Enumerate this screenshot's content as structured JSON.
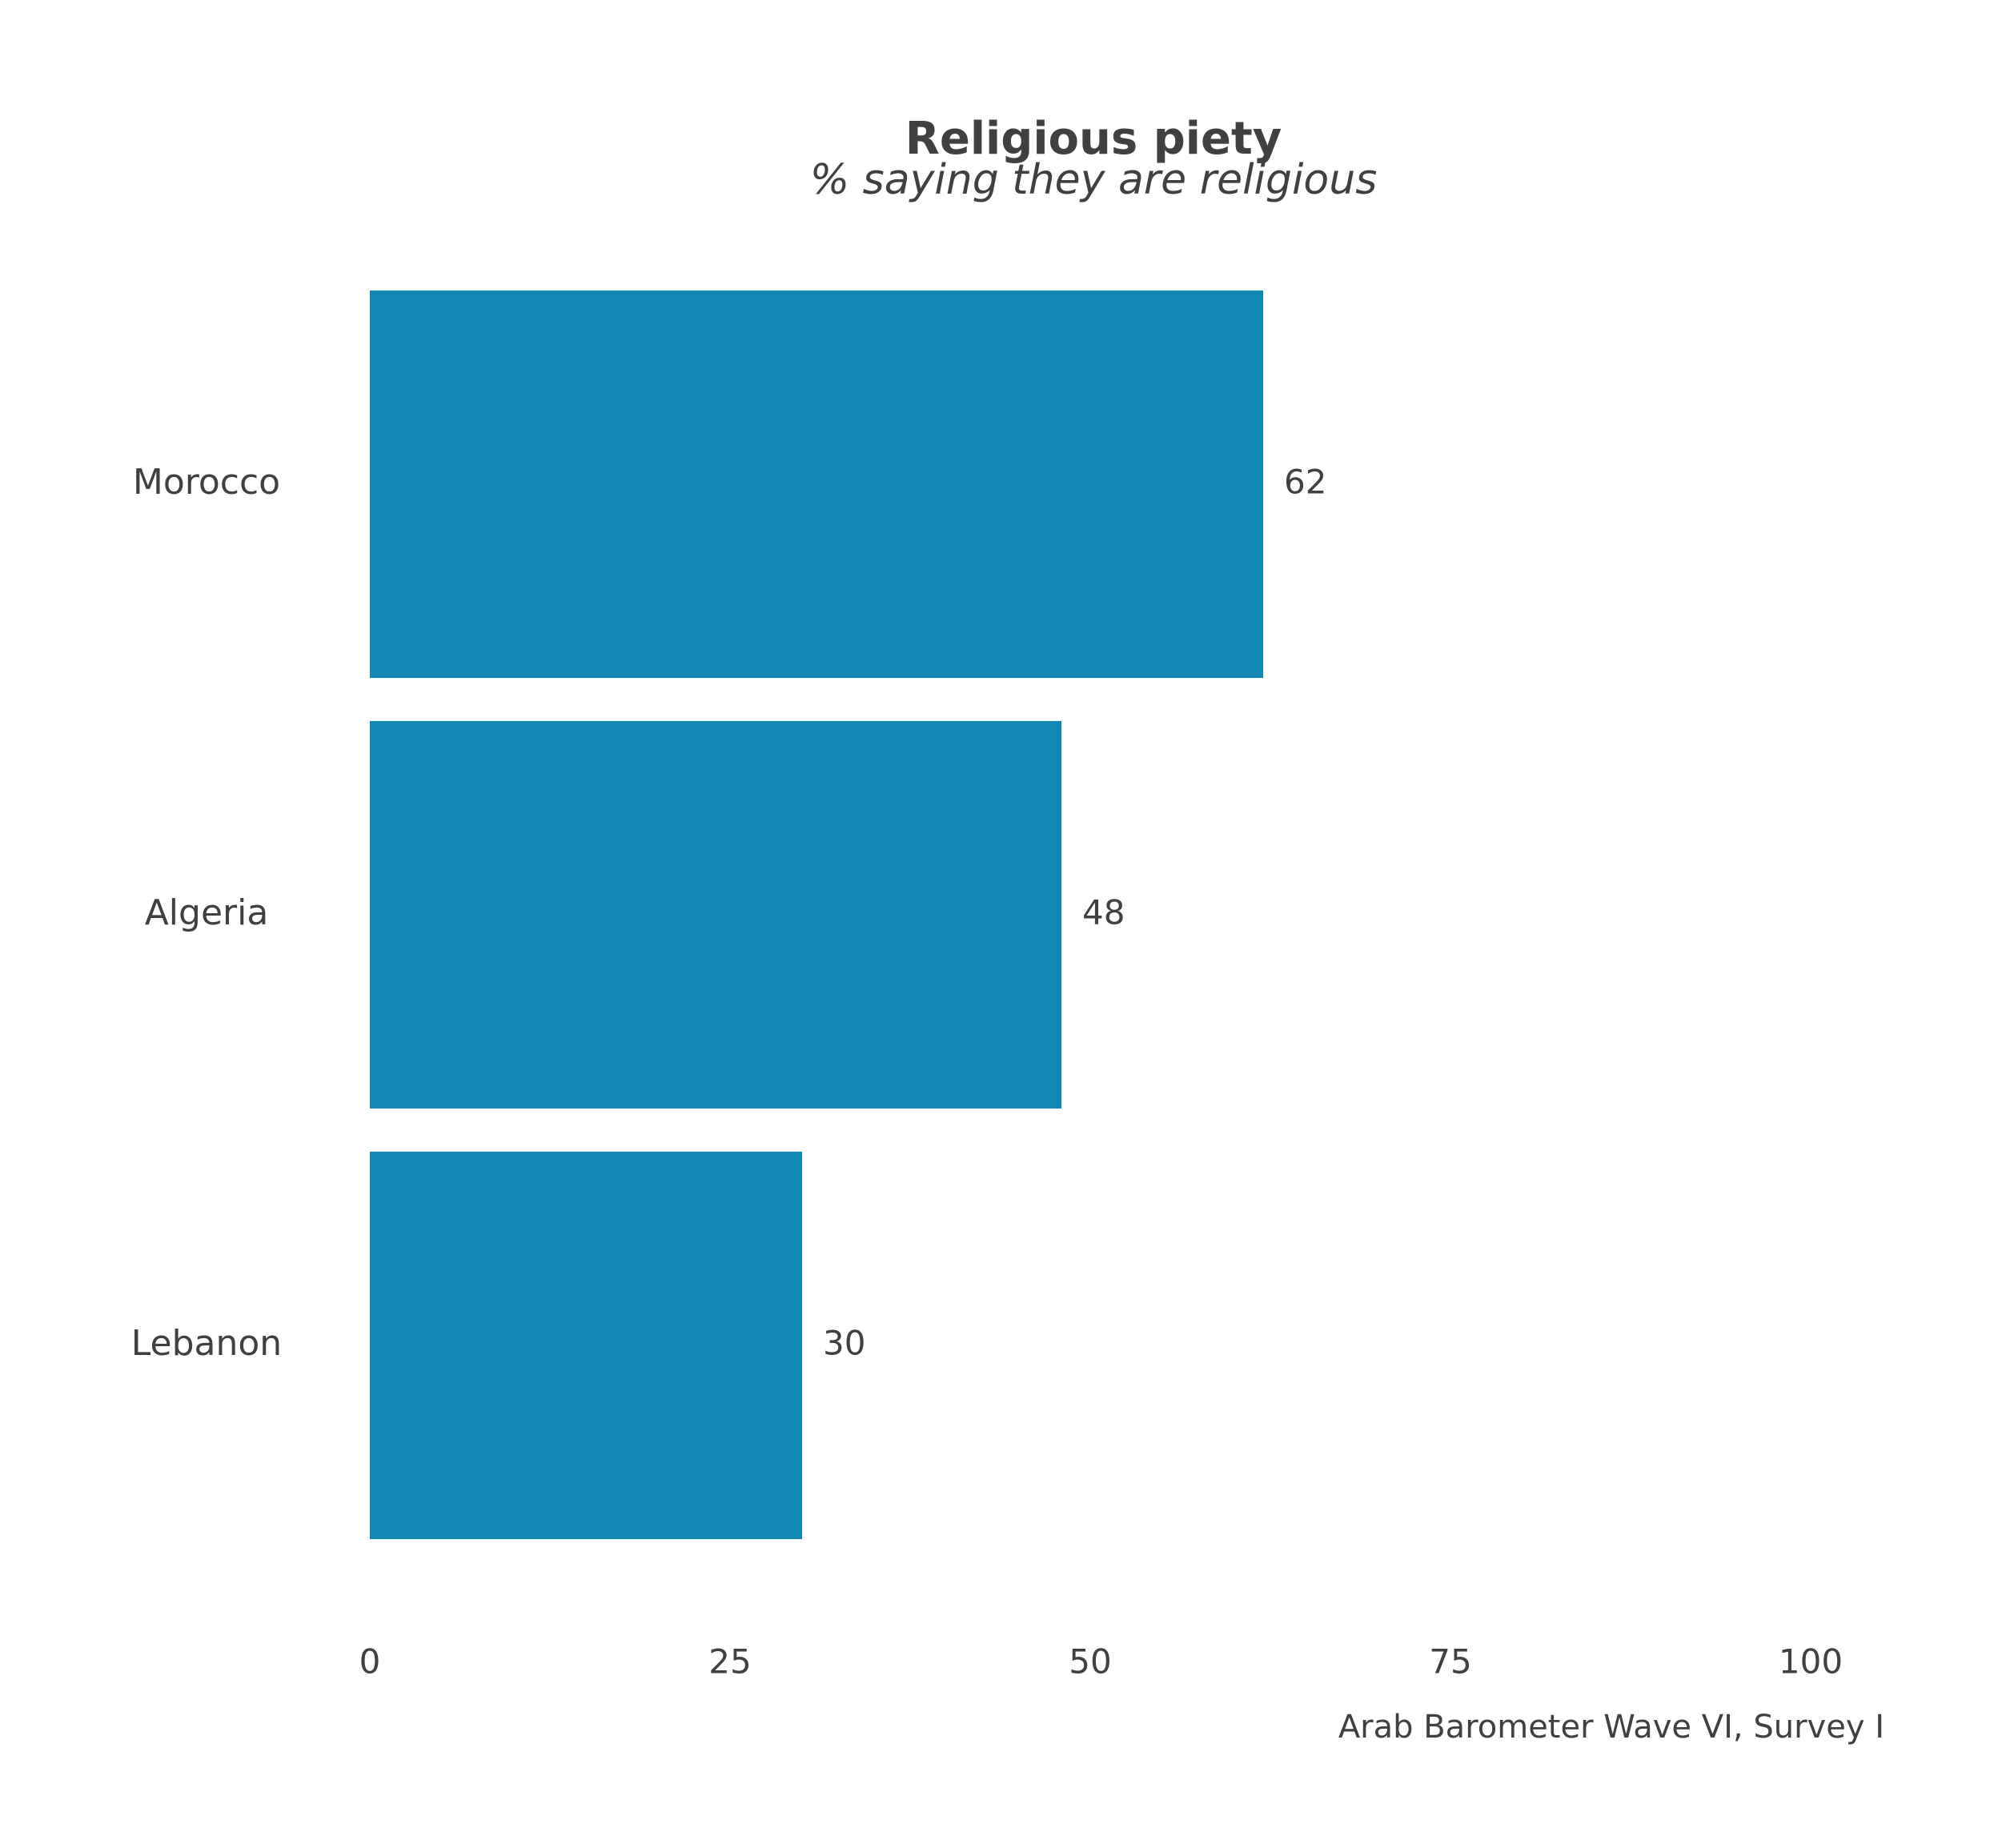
{
  "chart_data": {
    "type": "bar",
    "orientation": "horizontal",
    "title": "Religious piety",
    "subtitle": "% saying they are religious",
    "caption": "Arab Barometer Wave VI, Survey I",
    "categories": [
      "Morocco",
      "Algeria",
      "Lebanon"
    ],
    "values": [
      62,
      48,
      30
    ],
    "value_labels": [
      "62",
      "48",
      "30"
    ],
    "xlim": [
      0,
      100
    ],
    "x_ticks": [
      0,
      25,
      50,
      75,
      100
    ],
    "x_tick_labels": [
      "0",
      "25",
      "50",
      "75",
      "100"
    ],
    "xlabel": "",
    "ylabel": "",
    "grid": false,
    "bar_color": "#1287B1",
    "text_color": "#404040"
  }
}
